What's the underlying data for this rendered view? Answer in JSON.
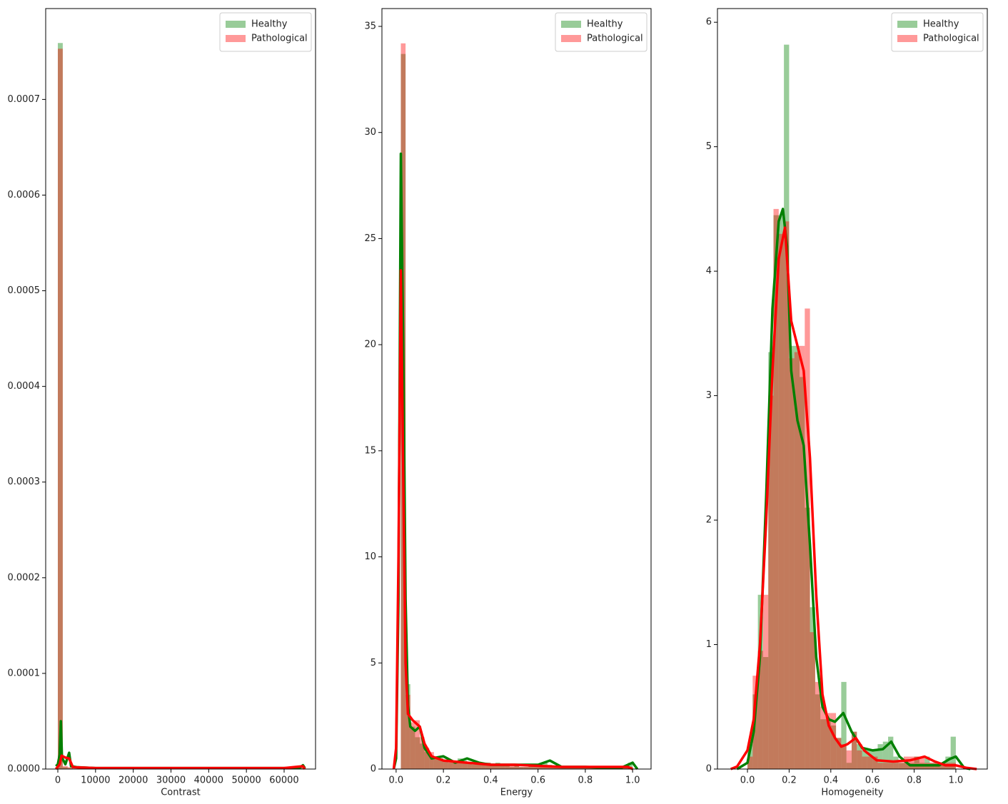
{
  "chart_data": [
    {
      "type": "histogram",
      "xlabel": "Contrast",
      "legend": "upper right",
      "xlim": [
        -3218,
        68330
      ],
      "ylim": [
        0,
        0.000795
      ],
      "xticks": [
        0,
        10000,
        20000,
        30000,
        40000,
        50000,
        60000
      ],
      "yticks": [
        {
          "value": 0,
          "label": "0.0000"
        },
        {
          "value": 0.0001,
          "label": "0.0001"
        },
        {
          "value": 0.0002,
          "label": "0.0002"
        },
        {
          "value": 0.0003,
          "label": "0.0003"
        },
        {
          "value": 0.0004,
          "label": "0.0004"
        },
        {
          "value": 0.0005,
          "label": "0.0005"
        },
        {
          "value": 0.0006,
          "label": "0.0006"
        },
        {
          "value": 0.0007,
          "label": "0.0007"
        }
      ],
      "series": [
        {
          "name": "Healthy",
          "color": "green",
          "bins": [
            0,
            1310,
            2620,
            3930,
            5240,
            6550,
            7860,
            9170,
            10480,
            11790,
            13100,
            14410,
            15720,
            17030,
            18340,
            19650,
            20960,
            22270,
            23580,
            24890,
            26200,
            27510,
            28820,
            30130,
            31440,
            32750,
            34060,
            35370,
            36680,
            37990,
            39300,
            40610,
            41920,
            43230,
            44540,
            45850,
            47160,
            48470,
            49780,
            51090,
            52400,
            53710,
            55020,
            56330,
            57640,
            58950,
            60260,
            61570,
            62880,
            64190,
            65500
          ],
          "values": [
            0.000759,
            2e-06,
            1e-06,
            0,
            0,
            0,
            0,
            0,
            0,
            0,
            0,
            0,
            0,
            0,
            0,
            0,
            0,
            0,
            0,
            0,
            0,
            0,
            0,
            0,
            0,
            0,
            0,
            0,
            0,
            0,
            0,
            0,
            0,
            0,
            0,
            0,
            0,
            0,
            0,
            0,
            0,
            0,
            0,
            0,
            0,
            0,
            0,
            0,
            0,
            1e-06
          ],
          "kde_x": [
            -500,
            0,
            500,
            800,
            1100,
            2000,
            3000,
            3500,
            5000,
            10000,
            30000,
            60000,
            64000,
            65000,
            65500
          ],
          "kde_y": [
            3e-06,
            5e-06,
            1.5e-05,
            5e-05,
            1.2e-05,
            5e-06,
            1.7e-05,
            3e-06,
            2e-06,
            1e-06,
            1e-06,
            1e-06,
            1e-06,
            4e-06,
            1e-06
          ]
        },
        {
          "name": "Pathological",
          "color": "red",
          "bins": [
            0,
            1310,
            2620,
            3930,
            5240,
            6550,
            7860,
            9170,
            10480,
            11790,
            13100,
            14410,
            15720,
            17030,
            18340,
            19650,
            20960,
            22270,
            23580,
            24890,
            26200,
            27510,
            28820,
            30130,
            31440,
            32750,
            34060,
            35370,
            36680,
            37990,
            39300,
            40610,
            41920,
            43230,
            44540,
            45850,
            47160,
            48470,
            49780,
            51090,
            52400,
            53710,
            55020,
            56330,
            57640,
            58950,
            60260,
            61570,
            62880,
            64190,
            65500
          ],
          "values": [
            0.000753,
            3e-06,
            2e-06,
            0,
            0,
            0,
            0,
            0,
            0,
            0,
            0,
            0,
            0,
            0,
            0,
            0,
            0,
            0,
            0,
            0,
            0,
            0,
            0,
            0,
            0,
            0,
            0,
            0,
            0,
            0,
            0,
            0,
            0,
            0,
            0,
            0,
            0,
            0,
            0,
            0,
            0,
            0,
            0,
            0,
            0,
            0,
            0,
            0,
            0,
            2e-06
          ],
          "kde_x": [
            -500,
            500,
            1000,
            2000,
            3000,
            4000,
            10000,
            60000,
            65000,
            65500
          ],
          "kde_y": [
            0,
            5e-06,
            1.4e-05,
            1.2e-05,
            1.1e-05,
            2e-06,
            1e-06,
            1e-06,
            3e-06,
            0
          ]
        }
      ]
    },
    {
      "type": "histogram",
      "xlabel": "Energy",
      "legend": "upper right",
      "xlim": [
        -0.06,
        1.078
      ],
      "ylim": [
        0,
        35.84
      ],
      "xticks": [
        {
          "value": 0,
          "label": "0.0"
        },
        0.2,
        0.4,
        0.6,
        0.8,
        {
          "value": 1,
          "label": "1.0"
        }
      ],
      "yticks": [
        0,
        5,
        10,
        15,
        20,
        25,
        30,
        35
      ],
      "series": [
        {
          "name": "Healthy",
          "color": "green",
          "bins": [
            0.02,
            0.04,
            0.06,
            0.08,
            0.1,
            0.12,
            0.14,
            0.16,
            0.18,
            0.2,
            0.22,
            0.24,
            0.26,
            0.28,
            0.3,
            0.32,
            0.34,
            0.36,
            0.38,
            0.4,
            0.42,
            0.44,
            0.46,
            0.48,
            0.5,
            0.52,
            0.54,
            0.56,
            0.58,
            0.6,
            0.62,
            0.64,
            0.66,
            0.68,
            0.7,
            0.72,
            0.74,
            0.76,
            0.78,
            0.8,
            0.82,
            0.84,
            0.86,
            0.88,
            0.9,
            0.92,
            0.94,
            0.96,
            0.98,
            1.0
          ],
          "values": [
            33.7,
            4.0,
            2.0,
            1.5,
            1.2,
            0.8,
            0.6,
            0.5,
            0.5,
            0.4,
            0.3,
            0.4,
            0.5,
            0.4,
            0.3,
            0.3,
            0.2,
            0.3,
            0.3,
            0.2,
            0.3,
            0.2,
            0.2,
            0.1,
            0.2,
            0.1,
            0.1,
            0.2,
            0.1,
            0.1,
            0.3,
            0.2,
            0.1,
            0.1,
            0.1,
            0.1,
            0.1,
            0.1,
            0.1,
            0.1,
            0.1,
            0.05,
            0.1,
            0.1,
            0.05,
            0.1,
            0.1,
            0.1,
            0.3
          ],
          "kde_x": [
            -0.01,
            0,
            0.01,
            0.02,
            0.03,
            0.04,
            0.05,
            0.06,
            0.08,
            0.1,
            0.12,
            0.15,
            0.2,
            0.25,
            0.3,
            0.35,
            0.4,
            0.5,
            0.6,
            0.65,
            0.7,
            0.8,
            0.9,
            0.95,
            1.0,
            1.02
          ],
          "kde_y": [
            0,
            0.5,
            8,
            29,
            20,
            8,
            3,
            2,
            1.8,
            2,
            1,
            0.5,
            0.6,
            0.3,
            0.5,
            0.3,
            0.2,
            0.2,
            0.2,
            0.4,
            0.1,
            0.1,
            0.05,
            0.05,
            0.3,
            0
          ]
        },
        {
          "name": "Pathological",
          "color": "red",
          "bins": [
            0.02,
            0.04,
            0.06,
            0.08,
            0.1,
            0.12,
            0.14,
            0.16,
            0.18,
            0.2,
            0.22,
            0.24,
            0.26,
            0.28,
            0.3,
            0.32,
            0.34,
            0.36,
            0.38,
            0.4,
            0.42,
            0.44,
            0.46,
            0.48,
            0.5,
            0.52,
            0.54,
            0.56,
            0.58,
            0.6,
            0.62,
            0.64,
            0.66,
            0.68,
            0.7,
            0.72,
            0.74,
            0.76,
            0.78,
            0.8,
            0.82,
            0.84,
            0.86,
            0.88,
            0.9,
            0.92,
            0.94,
            0.96,
            0.98,
            1.0
          ],
          "values": [
            34.2,
            3.5,
            2.2,
            2.3,
            1.5,
            1.0,
            0.8,
            0.6,
            0.5,
            0.4,
            0.4,
            0.3,
            0.3,
            0.3,
            0.3,
            0.2,
            0.3,
            0.2,
            0.3,
            0.2,
            0.2,
            0.2,
            0.2,
            0.2,
            0.2,
            0.1,
            0.1,
            0.2,
            0.1,
            0.1,
            0.1,
            0.1,
            0.1,
            0.1,
            0.1,
            0.1,
            0.1,
            0.1,
            0.1,
            0.1,
            0.1,
            0.1,
            0.1,
            0.1,
            0.1,
            0.1,
            0.1,
            0.1,
            0.1
          ],
          "kde_x": [
            -0.01,
            0,
            0.01,
            0.02,
            0.03,
            0.04,
            0.05,
            0.07,
            0.1,
            0.12,
            0.15,
            0.2,
            0.3,
            0.4,
            0.5,
            0.6,
            0.7,
            0.8,
            0.9,
            0.98,
            1.0
          ],
          "kde_y": [
            0,
            1,
            10,
            23.5,
            14,
            5,
            2.6,
            2.3,
            2,
            1.2,
            0.6,
            0.4,
            0.3,
            0.2,
            0.2,
            0.15,
            0.1,
            0.1,
            0.1,
            0.1,
            0
          ]
        }
      ]
    },
    {
      "type": "histogram",
      "xlabel": "Homogeneity",
      "legend": "upper right",
      "xlim": [
        -0.144,
        1.151
      ],
      "ylim": [
        0,
        6.11
      ],
      "xticks": [
        {
          "value": 0,
          "label": "0.0"
        },
        0.2,
        0.4,
        0.6,
        0.8,
        {
          "value": 1,
          "label": "1.0"
        }
      ],
      "yticks": [
        0,
        1,
        2,
        3,
        4,
        5,
        6
      ],
      "series": [
        {
          "name": "Healthy",
          "color": "green",
          "bins": [
            0,
            0.025,
            0.05,
            0.075,
            0.1,
            0.125,
            0.15,
            0.175,
            0.2,
            0.225,
            0.25,
            0.275,
            0.3,
            0.325,
            0.35,
            0.375,
            0.4,
            0.425,
            0.45,
            0.475,
            0.5,
            0.525,
            0.55,
            0.575,
            0.6,
            0.625,
            0.65,
            0.675,
            0.7,
            0.725,
            0.75,
            0.775,
            0.8,
            0.825,
            0.85,
            0.875,
            0.9,
            0.925,
            0.95,
            0.975,
            1.0
          ],
          "values": [
            0.2,
            0.6,
            1.4,
            0.9,
            3.35,
            4.45,
            4.45,
            5.82,
            3.4,
            3.4,
            3.15,
            2.1,
            1.3,
            0.6,
            0.4,
            0.4,
            0.35,
            0.25,
            0.7,
            0.05,
            0.3,
            0.2,
            0.15,
            0.15,
            0.15,
            0.2,
            0.22,
            0.26,
            0.1,
            0.05,
            0.05,
            0.05,
            0.1,
            0.05,
            0.1,
            0.05,
            0.05,
            0.05,
            0.1,
            0.26
          ],
          "kde_x": [
            -0.05,
            0,
            0.03,
            0.06,
            0.09,
            0.12,
            0.15,
            0.17,
            0.19,
            0.21,
            0.24,
            0.27,
            0.3,
            0.33,
            0.36,
            0.39,
            0.42,
            0.46,
            0.5,
            0.55,
            0.6,
            0.65,
            0.69,
            0.73,
            0.78,
            0.85,
            0.92,
            0.97,
            1.0,
            1.04,
            1.07
          ],
          "kde_y": [
            0,
            0.05,
            0.3,
            0.9,
            2.2,
            3.7,
            4.4,
            4.5,
            4.2,
            3.2,
            2.8,
            2.6,
            1.8,
            0.9,
            0.5,
            0.4,
            0.38,
            0.45,
            0.3,
            0.17,
            0.15,
            0.16,
            0.22,
            0.1,
            0.03,
            0.03,
            0.03,
            0.08,
            0.1,
            0.01,
            0
          ]
        },
        {
          "name": "Pathological",
          "color": "red",
          "bins": [
            0,
            0.025,
            0.05,
            0.075,
            0.1,
            0.125,
            0.15,
            0.175,
            0.2,
            0.225,
            0.25,
            0.275,
            0.3,
            0.325,
            0.35,
            0.375,
            0.4,
            0.425,
            0.45,
            0.475,
            0.5,
            0.525,
            0.55,
            0.575,
            0.6,
            0.625,
            0.65,
            0.675,
            0.7,
            0.725,
            0.75,
            0.775,
            0.8,
            0.825,
            0.85,
            0.875,
            0.9,
            0.925,
            0.95,
            0.975,
            1.0
          ],
          "values": [
            0.1,
            0.75,
            0.95,
            1.4,
            3.0,
            4.5,
            4.3,
            4.4,
            3.3,
            3.35,
            3.4,
            3.7,
            1.1,
            0.7,
            0.5,
            0.45,
            0.45,
            0.25,
            0.2,
            0.15,
            0.3,
            0.15,
            0.1,
            0.1,
            0.1,
            0.05,
            0.05,
            0.05,
            0.05,
            0.05,
            0.1,
            0.1,
            0.1,
            0.1,
            0.05,
            0.05,
            0.05,
            0.05,
            0.05,
            0.05
          ],
          "kde_x": [
            -0.08,
            -0.05,
            0,
            0.03,
            0.06,
            0.09,
            0.12,
            0.15,
            0.18,
            0.21,
            0.24,
            0.27,
            0.3,
            0.33,
            0.36,
            0.39,
            0.42,
            0.45,
            0.48,
            0.52,
            0.56,
            0.62,
            0.7,
            0.78,
            0.85,
            0.9,
            0.95,
            1.0,
            1.05,
            1.1
          ],
          "kde_y": [
            0,
            0.02,
            0.15,
            0.4,
            1.0,
            2.0,
            3.2,
            4.1,
            4.35,
            3.6,
            3.4,
            3.2,
            2.5,
            1.4,
            0.6,
            0.35,
            0.25,
            0.18,
            0.2,
            0.25,
            0.15,
            0.07,
            0.06,
            0.07,
            0.1,
            0.06,
            0.03,
            0.03,
            0.01,
            0
          ]
        }
      ]
    }
  ]
}
